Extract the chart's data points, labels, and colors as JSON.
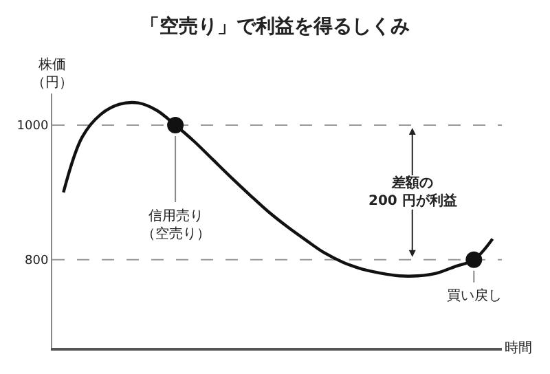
{
  "chart_data": {
    "type": "line",
    "title": "「空売り」で利益を得るしくみ",
    "ylabel": "株価（円）",
    "xlabel": "時間",
    "categories": [
      null,
      null,
      null,
      null,
      null,
      null,
      null,
      null,
      null,
      null,
      null,
      null,
      null,
      null,
      null,
      null,
      null,
      null,
      null,
      null,
      null,
      null,
      null,
      null
    ],
    "series": [
      {
        "color": "#111111",
        "values": [
          900,
          982,
          1016,
          1031,
          1033,
          1022,
          1000,
          976,
          949,
          922,
          896,
          871,
          849,
          829,
          810,
          796,
          786,
          780,
          776,
          776,
          780,
          790,
          800,
          831
        ]
      },
      {
        "type": "scatter",
        "color": "#111111",
        "marker": "circle",
        "values": [
          null,
          null,
          null,
          null,
          null,
          null,
          1000,
          null,
          null,
          null,
          null,
          null,
          null,
          null,
          null,
          null,
          null,
          null,
          null,
          null,
          null,
          null,
          800,
          null
        ]
      }
    ],
    "ylim": [
      669,
      1047
    ],
    "yticks": [
      800,
      1000
    ],
    "ref_lines": [
      {
        "axis": "y",
        "value": 1000,
        "color": "#999999",
        "line_style": "dashed"
      },
      {
        "axis": "y",
        "value": 800,
        "color": "#999999",
        "line_style": "dashed"
      }
    ],
    "annotations": [
      "信用売り（空売り）",
      "差額の\n200 円が利益",
      "買い戻し"
    ],
    "grid": false,
    "legend": false
  }
}
